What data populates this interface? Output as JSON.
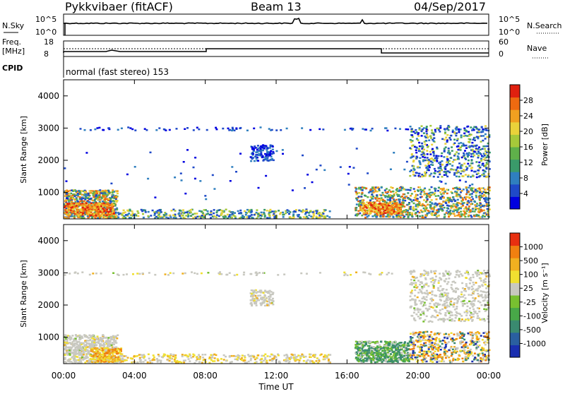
{
  "header": {
    "title_left": "Pykkvibaer (fitACF)",
    "title_center": "Beam 13",
    "title_right": "04/Sep/2017"
  },
  "strip_labels": {
    "nsky": "N.Sky",
    "nsearch": "N.Search",
    "freq": "Freq.",
    "freq_unit": "[MHz]",
    "nave": "Nave",
    "cpid": "CPID",
    "cpid_value": "normal (fast stereo) 153",
    "left_top_tick": "10^5",
    "left_bot_tick": "10^0",
    "right_top_tick": "10^5",
    "right_bot_tick": "10^0",
    "freq_top": "18",
    "freq_bot": "8",
    "nave_top": "60",
    "nave_bot": "0"
  },
  "chart_data": [
    {
      "type": "heatmap",
      "title": "",
      "xlabel": "",
      "ylabel": "Slant Range [km]",
      "colorbar_label": "Power [dB]",
      "colorbar_ticks": [
        "4",
        "8",
        "12",
        "16",
        "20",
        "24",
        "28"
      ],
      "colorbar_colors": [
        "#0000e0",
        "#1f49c8",
        "#2f7fbf",
        "#3a9a6a",
        "#5fb04a",
        "#a6c93a",
        "#ead23a",
        "#f0a020",
        "#ee6a10",
        "#e0200f"
      ],
      "ylim": [
        180,
        4500
      ],
      "yticks": [
        "1000",
        "2000",
        "3000",
        "4000"
      ],
      "xlim": [
        "00:00",
        "00:00"
      ]
    },
    {
      "type": "heatmap",
      "title": "",
      "xlabel": "Time UT",
      "ylabel": "Slant Range [km]",
      "colorbar_label": "Velocity [m s⁻¹]",
      "colorbar_ticks": [
        "1000",
        "500",
        "100",
        "25",
        "-25",
        "-100",
        "-500",
        "-1000"
      ],
      "colorbar_colors": [
        "#1a2fb0",
        "#2a5fa0",
        "#3a8a70",
        "#48a848",
        "#78c030",
        "#c8c8c0",
        "#f0e030",
        "#f0b020",
        "#f08010",
        "#e83010"
      ],
      "ylim": [
        180,
        4500
      ],
      "yticks": [
        "1000",
        "2000",
        "3000",
        "4000"
      ],
      "xticks": [
        "00:00",
        "04:00",
        "08:00",
        "12:00",
        "16:00",
        "20:00",
        "00:00"
      ]
    }
  ]
}
